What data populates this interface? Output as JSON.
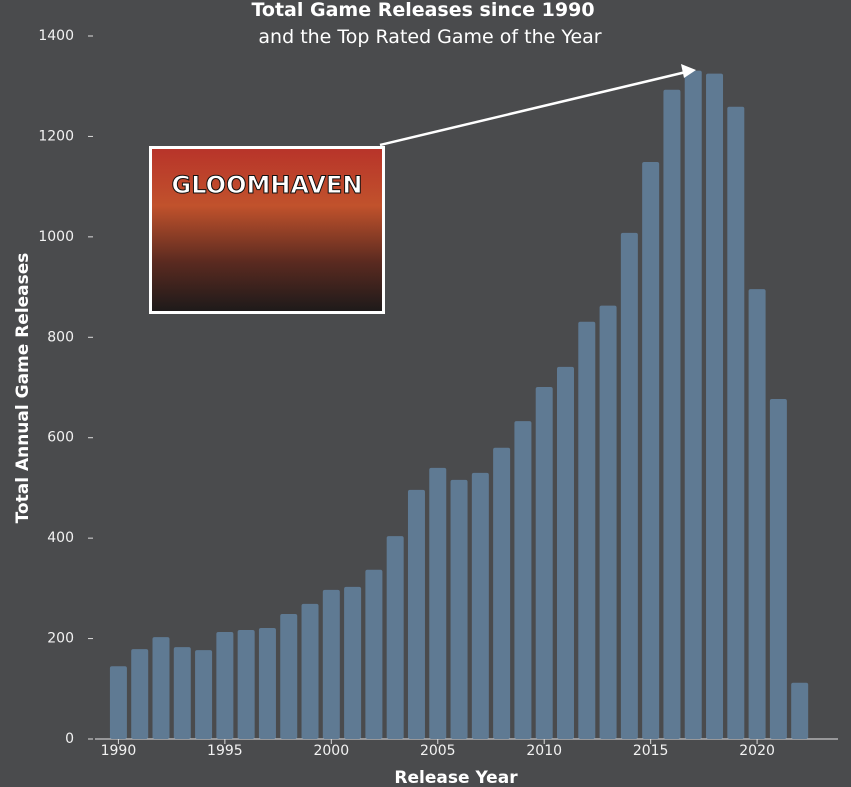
{
  "chart_data": {
    "type": "bar",
    "title": "Total Game Releases since 1990",
    "subtitle": "and the Top Rated Game of the Year",
    "x_label": "Release Year",
    "y_label": "Total Annual Game Releases",
    "annotation": "GLOOMHAVEN",
    "x": [
      1990,
      1991,
      1992,
      1993,
      1994,
      1995,
      1996,
      1997,
      1998,
      1999,
      2000,
      2001,
      2002,
      2003,
      2004,
      2005,
      2006,
      2007,
      2008,
      2009,
      2010,
      2011,
      2012,
      2013,
      2014,
      2015,
      2016,
      2017,
      2018,
      2019,
      2020,
      2021,
      2022
    ],
    "values": [
      145,
      179,
      203,
      183,
      177,
      213,
      217,
      221,
      249,
      269,
      297,
      303,
      337,
      404,
      496,
      540,
      516,
      530,
      580,
      633,
      701,
      741,
      831,
      863,
      1008,
      1149,
      1293,
      1331,
      1325,
      1259,
      896,
      677,
      112
    ],
    "color": "#5f7a93",
    "xlim": [
      1988.9,
      2023.8
    ],
    "xticks": [
      1990,
      1995,
      2000,
      2005,
      2010,
      2015,
      2020
    ],
    "ylim": [
      0,
      1400
    ],
    "yticks": [
      0,
      200,
      400,
      600,
      800,
      1000,
      1200,
      1400
    ]
  }
}
